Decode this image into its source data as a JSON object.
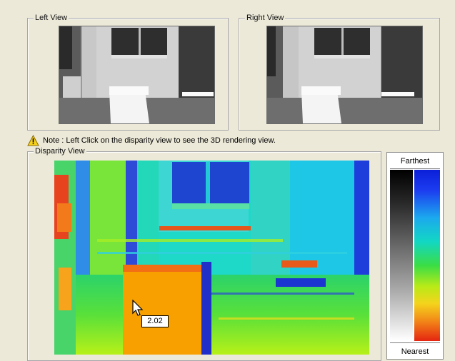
{
  "left_view": {
    "title": "Left View"
  },
  "right_view": {
    "title": "Right View"
  },
  "note": {
    "icon": "warning-icon",
    "text": "Note : Left Click on the disparity view to see the 3D rendering view."
  },
  "disparity_view": {
    "title": "Disparity View",
    "cursor_value": "2.02",
    "cursor_icon": "mouse-pointer-icon"
  },
  "legend": {
    "top_label": "Farthest",
    "bottom_label": "Nearest"
  },
  "colors": {
    "background": "#ECE9D8",
    "far_blue": "#1F3FD0",
    "near_red": "#E5260E",
    "mid_green": "#3DDA2A",
    "orange_object": "#F5A300"
  }
}
